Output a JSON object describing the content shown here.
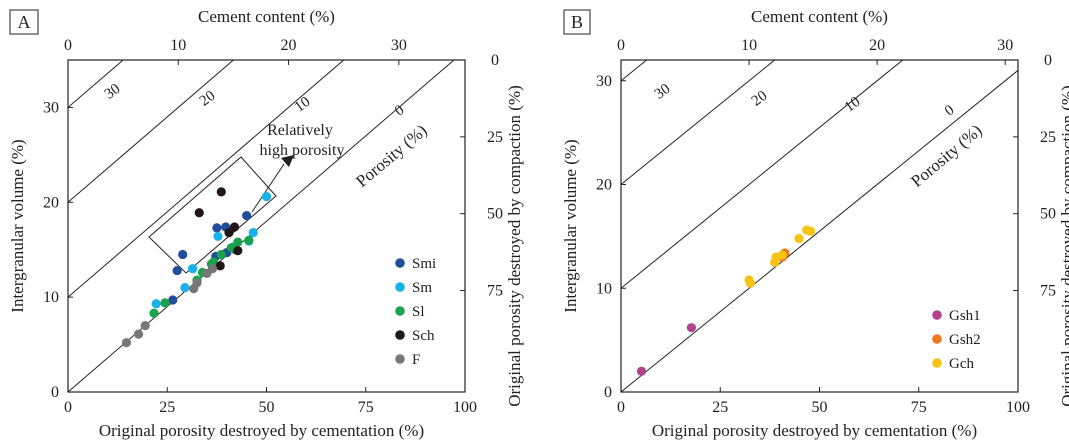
{
  "charts": [
    {
      "panel_label": "A",
      "top_axis_label": "Cement content (%)",
      "top_ticks": [
        0,
        10,
        20,
        30
      ],
      "left_axis_label": "Intergranular volume (%)",
      "left_ticks": [
        0,
        10,
        20,
        30
      ],
      "bottom_axis_label": "Original porosity destroyed by cementation (%)",
      "bottom_ticks": [
        0,
        25,
        50,
        75,
        100
      ],
      "right_axis_label": "Original porosity destroyed by compaction (%)",
      "right_ticks": [
        0,
        25,
        50,
        75
      ],
      "porosity_label": "Porosity (%)",
      "isolines": [
        "30",
        "20",
        "10",
        "0"
      ],
      "annotation": [
        "Relatively",
        "high porosity"
      ]
    },
    {
      "panel_label": "B",
      "top_axis_label": "Cement content (%)",
      "top_ticks": [
        0,
        10,
        20,
        30
      ],
      "left_axis_label": "Intergranular volume (%)",
      "left_ticks": [
        0,
        10,
        20,
        30
      ],
      "bottom_axis_label": "Original porosity destroyed by cementation (%)",
      "bottom_ticks": [
        0,
        25,
        50,
        75,
        100
      ],
      "right_axis_label": "Original porosity destroyed by compaction (%)",
      "right_ticks": [
        0,
        25,
        50,
        75
      ],
      "porosity_label": "Porosity (%)",
      "isolines": [
        "30",
        "20",
        "10",
        "0"
      ]
    }
  ],
  "chart_data": [
    {
      "type": "scatter",
      "x_label": "Cement content (%)",
      "y_label": "Intergranular volume (%)",
      "xlim": [
        0,
        36
      ],
      "ylim": [
        0,
        35
      ],
      "porosity_isolines": [
        30,
        20,
        10,
        0
      ],
      "series": [
        {
          "name": "Smi",
          "color": "#1f4e9a",
          "points": [
            [
              10.4,
              14.5
            ],
            [
              13.4,
              14.3
            ],
            [
              13.5,
              17.3
            ],
            [
              15.2,
              15.0
            ],
            [
              14.3,
              17.4
            ],
            [
              16.2,
              18.6
            ],
            [
              9.9,
              12.8
            ],
            [
              14.4,
              14.7
            ],
            [
              9.5,
              9.7
            ]
          ]
        },
        {
          "name": "Sm",
          "color": "#19b2e8",
          "points": [
            [
              8.0,
              9.3
            ],
            [
              10.6,
              11.0
            ],
            [
              11.3,
              13.0
            ],
            [
              13.6,
              16.4
            ],
            [
              16.4,
              15.9
            ],
            [
              16.8,
              16.8
            ],
            [
              18.0,
              20.6
            ],
            [
              15.0,
              15.3
            ]
          ]
        },
        {
          "name": "Sl",
          "color": "#1aa34a",
          "points": [
            [
              7.8,
              8.3
            ],
            [
              8.8,
              9.4
            ],
            [
              11.7,
              11.8
            ],
            [
              12.2,
              12.6
            ],
            [
              13.2,
              13.7
            ],
            [
              14.8,
              15.2
            ],
            [
              15.4,
              15.8
            ],
            [
              16.4,
              16.0
            ],
            [
              13.9,
              14.5
            ],
            [
              13.0,
              13.5
            ]
          ]
        },
        {
          "name": "Sch",
          "color": "#1f1718",
          "points": [
            [
              11.9,
              18.9
            ],
            [
              13.9,
              21.1
            ],
            [
              14.6,
              16.8
            ],
            [
              15.1,
              17.4
            ],
            [
              15.4,
              14.9
            ],
            [
              13.8,
              13.3
            ]
          ]
        },
        {
          "name": "F",
          "color": "#777777",
          "points": [
            [
              5.3,
              5.2
            ],
            [
              6.4,
              6.1
            ],
            [
              7.0,
              7.0
            ],
            [
              11.4,
              10.9
            ],
            [
              12.6,
              12.5
            ],
            [
              11.7,
              11.5
            ],
            [
              13.1,
              13.0
            ]
          ]
        }
      ]
    },
    {
      "type": "scatter",
      "x_label": "Cement content (%)",
      "y_label": "Intergranular volume (%)",
      "xlim": [
        0,
        31
      ],
      "ylim": [
        0,
        32
      ],
      "porosity_isolines": [
        30,
        20,
        10,
        0
      ],
      "series": [
        {
          "name": "Gsh1",
          "color": "#b3418d",
          "points": [
            [
              1.6,
              2.0
            ],
            [
              5.5,
              6.2
            ]
          ]
        },
        {
          "name": "Gsh2",
          "color": "#ee7622",
          "points": [
            [
              12.8,
              13.4
            ],
            [
              12.6,
              13.0
            ]
          ]
        },
        {
          "name": "Gch",
          "color": "#f7c313",
          "points": [
            [
              10.0,
              10.8
            ],
            [
              10.1,
              10.5
            ],
            [
              12.1,
              13.0
            ],
            [
              12.0,
              12.5
            ],
            [
              12.6,
              13.2
            ],
            [
              13.9,
              14.8
            ],
            [
              14.5,
              15.6
            ],
            [
              14.8,
              15.5
            ]
          ]
        }
      ]
    }
  ]
}
